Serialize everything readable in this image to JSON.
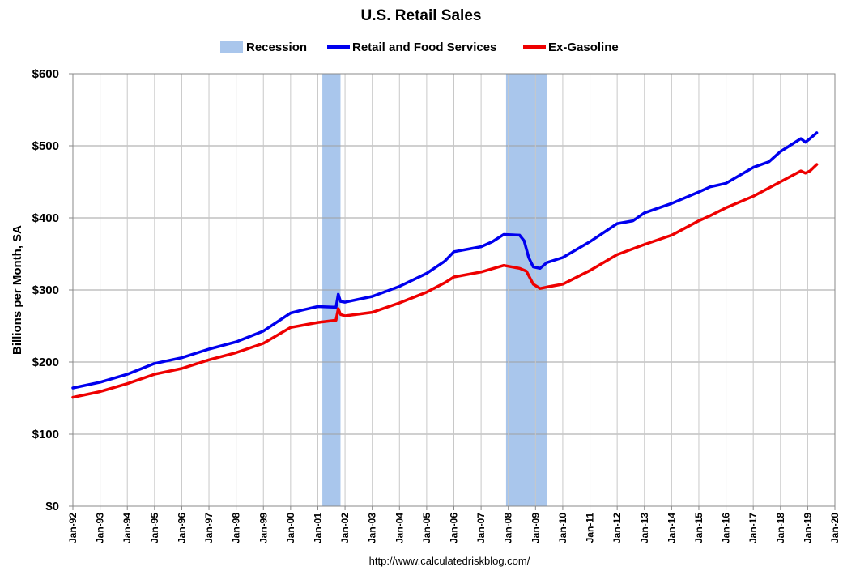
{
  "chart_data": {
    "type": "line",
    "title": "U.S. Retail Sales",
    "ylabel": "Billions per Month, SA",
    "source": "http://www.calculatedriskblog.com/",
    "xlim": [
      "1992-01",
      "2020-01"
    ],
    "ylim": [
      0,
      600
    ],
    "y_ticks": [
      0,
      100,
      200,
      300,
      400,
      500,
      600
    ],
    "y_tick_labels": [
      "$0",
      "$100",
      "$200",
      "$300",
      "$400",
      "$500",
      "$600"
    ],
    "x_tick_labels": [
      "Jan-92",
      "Jan-93",
      "Jan-94",
      "Jan-95",
      "Jan-96",
      "Jan-97",
      "Jan-98",
      "Jan-99",
      "Jan-00",
      "Jan-01",
      "Jan-02",
      "Jan-03",
      "Jan-04",
      "Jan-05",
      "Jan-06",
      "Jan-07",
      "Jan-08",
      "Jan-09",
      "Jan-10",
      "Jan-11",
      "Jan-12",
      "Jan-13",
      "Jan-14",
      "Jan-15",
      "Jan-16",
      "Jan-17",
      "Jan-18",
      "Jan-19",
      "Jan-20"
    ],
    "grid": true,
    "legend": {
      "position": "top",
      "entries": [
        {
          "label": "Recession",
          "color": "#a9c6ec",
          "kind": "band"
        },
        {
          "label": "Retail and Food Services",
          "color": "#0000ee",
          "kind": "line"
        },
        {
          "label": "Ex-Gasoline",
          "color": "#ee0000",
          "kind": "line"
        }
      ]
    },
    "recessions": [
      {
        "start": "2001-03",
        "end": "2001-11"
      },
      {
        "start": "2007-12",
        "end": "2009-06"
      }
    ],
    "series": [
      {
        "name": "Retail and Food Services",
        "color": "#0000ee",
        "points": [
          [
            "1992-01",
            164
          ],
          [
            "1993-01",
            172
          ],
          [
            "1994-01",
            183
          ],
          [
            "1995-01",
            198
          ],
          [
            "1996-01",
            206
          ],
          [
            "1997-01",
            218
          ],
          [
            "1998-01",
            228
          ],
          [
            "1999-01",
            243
          ],
          [
            "2000-01",
            268
          ],
          [
            "2000-06",
            272
          ],
          [
            "2001-01",
            277
          ],
          [
            "2001-09",
            276
          ],
          [
            "2001-10",
            294
          ],
          [
            "2001-11",
            284
          ],
          [
            "2002-01",
            283
          ],
          [
            "2003-01",
            291
          ],
          [
            "2004-01",
            305
          ],
          [
            "2005-01",
            323
          ],
          [
            "2005-09",
            340
          ],
          [
            "2006-01",
            353
          ],
          [
            "2007-01",
            360
          ],
          [
            "2007-06",
            367
          ],
          [
            "2007-11",
            377
          ],
          [
            "2008-06",
            376
          ],
          [
            "2008-08",
            368
          ],
          [
            "2008-10",
            345
          ],
          [
            "2008-12",
            332
          ],
          [
            "2009-03",
            330
          ],
          [
            "2009-06",
            338
          ],
          [
            "2010-01",
            345
          ],
          [
            "2011-01",
            367
          ],
          [
            "2012-01",
            392
          ],
          [
            "2012-08",
            396
          ],
          [
            "2013-01",
            407
          ],
          [
            "2014-01",
            420
          ],
          [
            "2015-01",
            436
          ],
          [
            "2015-06",
            443
          ],
          [
            "2016-01",
            448
          ],
          [
            "2017-01",
            470
          ],
          [
            "2017-08",
            478
          ],
          [
            "2018-01",
            492
          ],
          [
            "2018-10",
            510
          ],
          [
            "2018-12",
            505
          ],
          [
            "2019-02",
            510
          ],
          [
            "2019-05",
            518
          ]
        ]
      },
      {
        "name": "Ex-Gasoline",
        "color": "#ee0000",
        "points": [
          [
            "1992-01",
            151
          ],
          [
            "1993-01",
            159
          ],
          [
            "1994-01",
            170
          ],
          [
            "1995-01",
            183
          ],
          [
            "1996-01",
            191
          ],
          [
            "1997-01",
            203
          ],
          [
            "1998-01",
            213
          ],
          [
            "1999-01",
            226
          ],
          [
            "2000-01",
            248
          ],
          [
            "2001-01",
            255
          ],
          [
            "2001-09",
            258
          ],
          [
            "2001-10",
            274
          ],
          [
            "2001-11",
            266
          ],
          [
            "2002-01",
            264
          ],
          [
            "2003-01",
            269
          ],
          [
            "2004-01",
            282
          ],
          [
            "2005-01",
            297
          ],
          [
            "2005-09",
            310
          ],
          [
            "2006-01",
            318
          ],
          [
            "2007-01",
            325
          ],
          [
            "2007-11",
            334
          ],
          [
            "2008-06",
            330
          ],
          [
            "2008-09",
            326
          ],
          [
            "2008-12",
            308
          ],
          [
            "2009-03",
            302
          ],
          [
            "2009-06",
            304
          ],
          [
            "2010-01",
            308
          ],
          [
            "2011-01",
            327
          ],
          [
            "2012-01",
            349
          ],
          [
            "2013-01",
            363
          ],
          [
            "2014-01",
            376
          ],
          [
            "2015-01",
            396
          ],
          [
            "2015-06",
            403
          ],
          [
            "2016-01",
            414
          ],
          [
            "2017-01",
            430
          ],
          [
            "2018-01",
            450
          ],
          [
            "2018-10",
            465
          ],
          [
            "2018-12",
            462
          ],
          [
            "2019-02",
            465
          ],
          [
            "2019-05",
            474
          ]
        ]
      }
    ]
  }
}
